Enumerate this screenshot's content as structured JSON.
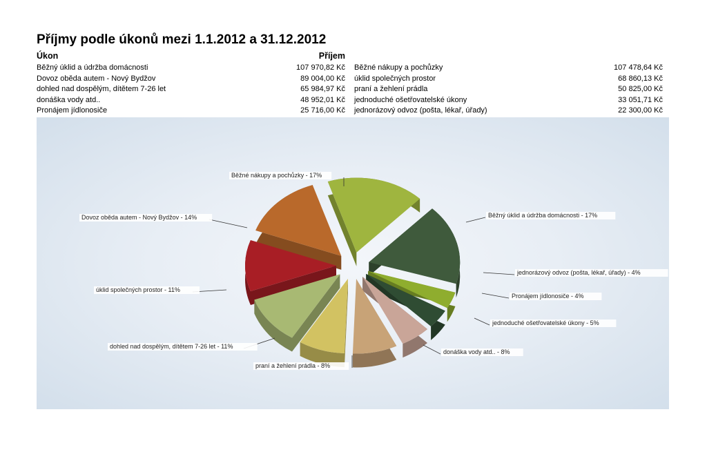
{
  "title": "Příjmy podle úkonů mezi 1.1.2012 a 31.12.2012",
  "table": {
    "header_task": "Úkon",
    "header_income": "Příjem",
    "left_rows": [
      {
        "task": "Běžný úklid a údržba domácnosti",
        "amount": "107 970,82 Kč"
      },
      {
        "task": "Dovoz oběda autem - Nový Bydžov",
        "amount": "89 004,00 Kč"
      },
      {
        "task": "dohled nad dospělým, dítětem 7-26 let",
        "amount": "65 984,97 Kč"
      },
      {
        "task": "donáška vody atd..",
        "amount": "48 952,01 Kč"
      },
      {
        "task": "Pronájem jídlonosiče",
        "amount": "25 716,00 Kč"
      }
    ],
    "right_rows": [
      {
        "task": "Běžné nákupy a pochůzky",
        "amount": "107 478,64 Kč"
      },
      {
        "task": "úklid společných prostor",
        "amount": "68 860,13 Kč"
      },
      {
        "task": "praní a žehlení prádla",
        "amount": "50 825,00 Kč"
      },
      {
        "task": "jednoduché ošetřovatelské úkony",
        "amount": "33 051,71 Kč"
      },
      {
        "task": "jednorázový odvoz (pošta, lékař, úřady)",
        "amount": "22 300,00 Kč"
      }
    ]
  },
  "chart_data": {
    "type": "pie",
    "exploded": true,
    "three_d": true,
    "slices": [
      {
        "label": "Běžné nákupy a pochůzky - 17%",
        "value": 107478.64,
        "color": "#9fb53f"
      },
      {
        "label": "Běžný úklid a údržba domácnosti - 17%",
        "value": 107970.82,
        "color": "#3f5a3c"
      },
      {
        "label": "jednorázový odvoz (pošta, lékař, úřady) - 4%",
        "value": 22300.0,
        "color": "#8fad2e"
      },
      {
        "label": "Pronájem jídlonosiče  - 4%",
        "value": 25716.0,
        "color": "#2f4c33"
      },
      {
        "label": "jednoduché ošetřovatelské úkony - 5%",
        "value": 33051.71,
        "color": "#c9a598"
      },
      {
        "label": "donáška vody atd.. - 8%",
        "value": 48952.01,
        "color": "#c8a377"
      },
      {
        "label": "praní a žehlení prádla - 8%",
        "value": 50825.0,
        "color": "#d2c262"
      },
      {
        "label": "dohled nad dospělým, dítětem 7-26 let - 11%",
        "value": 65984.97,
        "color": "#a8b973"
      },
      {
        "label": "úklid společných prostor - 11%",
        "value": 68860.13,
        "color": "#a81e25"
      },
      {
        "label": "Dovoz oběda autem - Nový Bydžov  - 14%",
        "value": 89004.0,
        "color": "#b9692b"
      }
    ]
  }
}
